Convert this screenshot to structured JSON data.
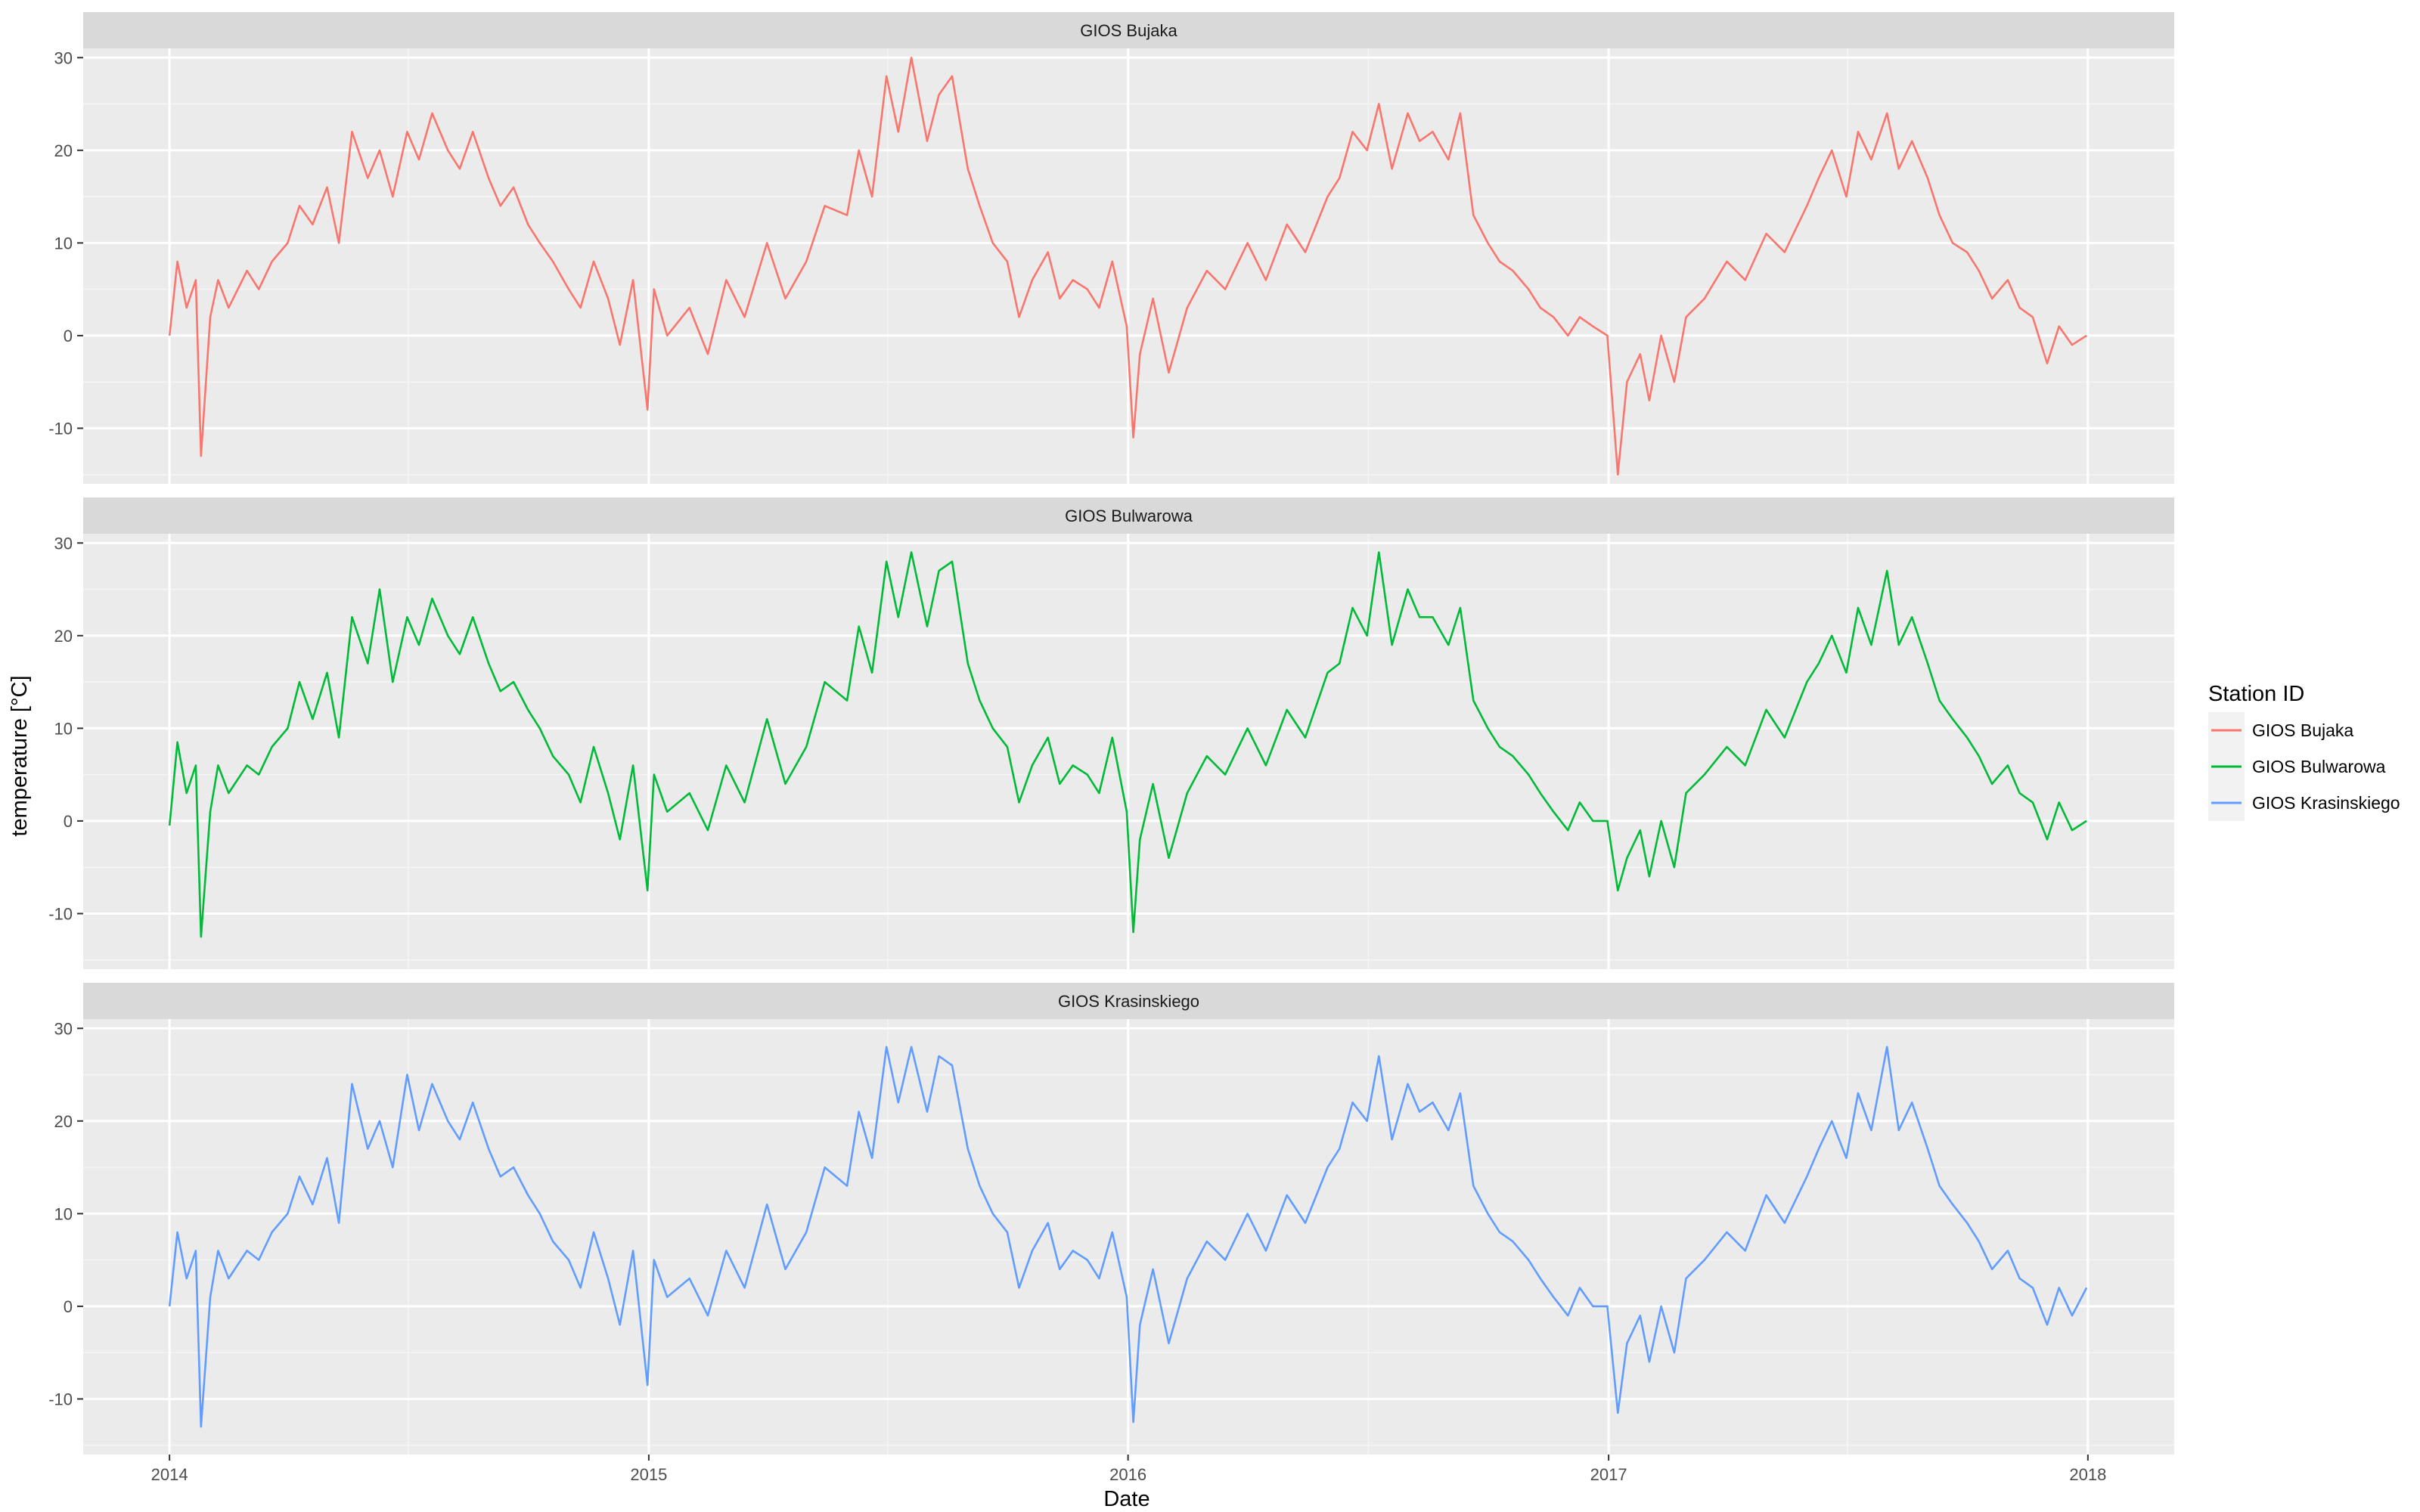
{
  "chart_data": {
    "type": "line",
    "facet_layout": "vertical",
    "xlabel": "Date",
    "ylabel": "temperature [°C]",
    "x_range": [
      "2014-01-01",
      "2018-01-01"
    ],
    "ylim": [
      -16,
      31
    ],
    "grid": true,
    "x_ticks": [
      "2014",
      "2015",
      "2016",
      "2017",
      "2018"
    ],
    "y_ticks": [
      -10,
      0,
      10,
      20,
      30
    ],
    "legend": {
      "title": "Station ID",
      "position": "right",
      "entries": [
        "GIOS Bujaka",
        "GIOS Bulwarowa",
        "GIOS Krasinskiego"
      ]
    },
    "series": [
      {
        "name": "GIOS Bujaka",
        "color": "#F8766D",
        "x": [
          "2014-01-01",
          "2014-01-07",
          "2014-01-14",
          "2014-01-21",
          "2014-01-25",
          "2014-02-01",
          "2014-02-07",
          "2014-02-15",
          "2014-03-01",
          "2014-03-10",
          "2014-03-20",
          "2014-04-01",
          "2014-04-10",
          "2014-04-20",
          "2014-05-01",
          "2014-05-10",
          "2014-05-20",
          "2014-06-01",
          "2014-06-10",
          "2014-06-20",
          "2014-07-01",
          "2014-07-10",
          "2014-07-20",
          "2014-08-01",
          "2014-08-10",
          "2014-08-20",
          "2014-09-01",
          "2014-09-10",
          "2014-09-20",
          "2014-10-01",
          "2014-10-10",
          "2014-10-20",
          "2014-11-01",
          "2014-11-10",
          "2014-11-20",
          "2014-12-01",
          "2014-12-10",
          "2014-12-20",
          "2014-12-31",
          "2015-01-05",
          "2015-01-15",
          "2015-02-01",
          "2015-02-15",
          "2015-03-01",
          "2015-03-15",
          "2015-04-01",
          "2015-04-15",
          "2015-05-01",
          "2015-05-15",
          "2015-06-01",
          "2015-06-10",
          "2015-06-20",
          "2015-07-01",
          "2015-07-10",
          "2015-07-20",
          "2015-08-01",
          "2015-08-10",
          "2015-08-20",
          "2015-09-01",
          "2015-09-10",
          "2015-09-20",
          "2015-10-01",
          "2015-10-10",
          "2015-10-20",
          "2015-11-01",
          "2015-11-10",
          "2015-11-20",
          "2015-12-01",
          "2015-12-10",
          "2015-12-20",
          "2015-12-31",
          "2016-01-05",
          "2016-01-10",
          "2016-01-20",
          "2016-02-01",
          "2016-02-15",
          "2016-03-01",
          "2016-03-15",
          "2016-04-01",
          "2016-04-15",
          "2016-05-01",
          "2016-05-15",
          "2016-06-01",
          "2016-06-10",
          "2016-06-20",
          "2016-07-01",
          "2016-07-10",
          "2016-07-20",
          "2016-08-01",
          "2016-08-10",
          "2016-08-20",
          "2016-09-01",
          "2016-09-10",
          "2016-09-20",
          "2016-10-01",
          "2016-10-10",
          "2016-10-20",
          "2016-11-01",
          "2016-11-10",
          "2016-11-20",
          "2016-12-01",
          "2016-12-10",
          "2016-12-20",
          "2016-12-31",
          "2017-01-08",
          "2017-01-15",
          "2017-01-25",
          "2017-02-01",
          "2017-02-10",
          "2017-02-20",
          "2017-03-01",
          "2017-03-15",
          "2017-04-01",
          "2017-04-15",
          "2017-05-01",
          "2017-05-15",
          "2017-06-01",
          "2017-06-10",
          "2017-06-20",
          "2017-07-01",
          "2017-07-10",
          "2017-07-20",
          "2017-08-01",
          "2017-08-10",
          "2017-08-20",
          "2017-09-01",
          "2017-09-10",
          "2017-09-20",
          "2017-10-01",
          "2017-10-10",
          "2017-10-20",
          "2017-11-01",
          "2017-11-10",
          "2017-11-20",
          "2017-12-01",
          "2017-12-10",
          "2017-12-20",
          "2017-12-31"
        ],
        "values": [
          0,
          8,
          3,
          6,
          -13,
          2,
          6,
          3,
          7,
          5,
          8,
          10,
          14,
          12,
          16,
          10,
          22,
          17,
          20,
          15,
          22,
          19,
          24,
          20,
          18,
          22,
          17,
          14,
          16,
          12,
          10,
          8,
          5,
          3,
          8,
          4,
          -1,
          6,
          -8,
          5,
          0,
          3,
          -2,
          6,
          2,
          10,
          4,
          8,
          14,
          13,
          20,
          15,
          28,
          22,
          30,
          21,
          26,
          28,
          18,
          14,
          10,
          8,
          2,
          6,
          9,
          4,
          6,
          5,
          3,
          8,
          1,
          -11,
          -2,
          4,
          -4,
          3,
          7,
          5,
          10,
          6,
          12,
          9,
          15,
          17,
          22,
          20,
          25,
          18,
          24,
          21,
          22,
          19,
          24,
          13,
          10,
          8,
          7,
          5,
          3,
          2,
          0,
          2,
          1,
          0,
          -15,
          -5,
          -2,
          -7,
          0,
          -5,
          2,
          4,
          8,
          6,
          11,
          9,
          14,
          17,
          20,
          15,
          22,
          19,
          24,
          18,
          21,
          17,
          13,
          10,
          9,
          7,
          4,
          6,
          3,
          2,
          -3,
          1,
          -1,
          0
        ]
      },
      {
        "name": "GIOS Bulwarowa",
        "color": "#00BA38",
        "x": [
          "2014-01-01",
          "2014-01-07",
          "2014-01-14",
          "2014-01-21",
          "2014-01-25",
          "2014-02-01",
          "2014-02-07",
          "2014-02-15",
          "2014-03-01",
          "2014-03-10",
          "2014-03-20",
          "2014-04-01",
          "2014-04-10",
          "2014-04-20",
          "2014-05-01",
          "2014-05-10",
          "2014-05-20",
          "2014-06-01",
          "2014-06-10",
          "2014-06-20",
          "2014-07-01",
          "2014-07-10",
          "2014-07-20",
          "2014-08-01",
          "2014-08-10",
          "2014-08-20",
          "2014-09-01",
          "2014-09-10",
          "2014-09-20",
          "2014-10-01",
          "2014-10-10",
          "2014-10-20",
          "2014-11-01",
          "2014-11-10",
          "2014-11-20",
          "2014-12-01",
          "2014-12-10",
          "2014-12-20",
          "2014-12-31",
          "2015-01-05",
          "2015-01-15",
          "2015-02-01",
          "2015-02-15",
          "2015-03-01",
          "2015-03-15",
          "2015-04-01",
          "2015-04-15",
          "2015-05-01",
          "2015-05-15",
          "2015-06-01",
          "2015-06-10",
          "2015-06-20",
          "2015-07-01",
          "2015-07-10",
          "2015-07-20",
          "2015-08-01",
          "2015-08-10",
          "2015-08-20",
          "2015-09-01",
          "2015-09-10",
          "2015-09-20",
          "2015-10-01",
          "2015-10-10",
          "2015-10-20",
          "2015-11-01",
          "2015-11-10",
          "2015-11-20",
          "2015-12-01",
          "2015-12-10",
          "2015-12-20",
          "2015-12-31",
          "2016-01-05",
          "2016-01-10",
          "2016-01-20",
          "2016-02-01",
          "2016-02-15",
          "2016-03-01",
          "2016-03-15",
          "2016-04-01",
          "2016-04-15",
          "2016-05-01",
          "2016-05-15",
          "2016-06-01",
          "2016-06-10",
          "2016-06-20",
          "2016-07-01",
          "2016-07-10",
          "2016-07-20",
          "2016-08-01",
          "2016-08-10",
          "2016-08-20",
          "2016-09-01",
          "2016-09-10",
          "2016-09-20",
          "2016-10-01",
          "2016-10-10",
          "2016-10-20",
          "2016-11-01",
          "2016-11-10",
          "2016-11-20",
          "2016-12-01",
          "2016-12-10",
          "2016-12-20",
          "2016-12-31",
          "2017-01-08",
          "2017-01-15",
          "2017-01-25",
          "2017-02-01",
          "2017-02-10",
          "2017-02-20",
          "2017-03-01",
          "2017-03-15",
          "2017-04-01",
          "2017-04-15",
          "2017-05-01",
          "2017-05-15",
          "2017-06-01",
          "2017-06-10",
          "2017-06-20",
          "2017-07-01",
          "2017-07-10",
          "2017-07-20",
          "2017-08-01",
          "2017-08-10",
          "2017-08-20",
          "2017-09-01",
          "2017-09-10",
          "2017-09-20",
          "2017-10-01",
          "2017-10-10",
          "2017-10-20",
          "2017-11-01",
          "2017-11-10",
          "2017-11-20",
          "2017-12-01",
          "2017-12-10",
          "2017-12-20",
          "2017-12-31"
        ],
        "values": [
          -0.5,
          8.5,
          3,
          6,
          -12.5,
          1,
          6,
          3,
          6,
          5,
          8,
          10,
          15,
          11,
          16,
          9,
          22,
          17,
          25,
          15,
          22,
          19,
          24,
          20,
          18,
          22,
          17,
          14,
          15,
          12,
          10,
          7,
          5,
          2,
          8,
          3,
          -2,
          6,
          -7.5,
          5,
          1,
          3,
          -1,
          6,
          2,
          11,
          4,
          8,
          15,
          13,
          21,
          16,
          28,
          22,
          29,
          21,
          27,
          28,
          17,
          13,
          10,
          8,
          2,
          6,
          9,
          4,
          6,
          5,
          3,
          9,
          1,
          -12,
          -2,
          4,
          -4,
          3,
          7,
          5,
          10,
          6,
          12,
          9,
          16,
          17,
          23,
          20,
          29,
          19,
          25,
          22,
          22,
          19,
          23,
          13,
          10,
          8,
          7,
          5,
          3,
          1,
          -1,
          2,
          0,
          0,
          -7.5,
          -4,
          -1,
          -6,
          0,
          -5,
          3,
          5,
          8,
          6,
          12,
          9,
          15,
          17,
          20,
          16,
          23,
          19,
          27,
          19,
          22,
          17,
          13,
          11,
          9,
          7,
          4,
          6,
          3,
          2,
          -2,
          2,
          -1,
          0
        ]
      },
      {
        "name": "GIOS Krasinskiego",
        "color": "#619CFF",
        "x": [
          "2014-01-01",
          "2014-01-07",
          "2014-01-14",
          "2014-01-21",
          "2014-01-25",
          "2014-02-01",
          "2014-02-07",
          "2014-02-15",
          "2014-03-01",
          "2014-03-10",
          "2014-03-20",
          "2014-04-01",
          "2014-04-10",
          "2014-04-20",
          "2014-05-01",
          "2014-05-10",
          "2014-05-20",
          "2014-06-01",
          "2014-06-10",
          "2014-06-20",
          "2014-07-01",
          "2014-07-10",
          "2014-07-20",
          "2014-08-01",
          "2014-08-10",
          "2014-08-20",
          "2014-09-01",
          "2014-09-10",
          "2014-09-20",
          "2014-10-01",
          "2014-10-10",
          "2014-10-20",
          "2014-11-01",
          "2014-11-10",
          "2014-11-20",
          "2014-12-01",
          "2014-12-10",
          "2014-12-20",
          "2014-12-31",
          "2015-01-05",
          "2015-01-15",
          "2015-02-01",
          "2015-02-15",
          "2015-03-01",
          "2015-03-15",
          "2015-04-01",
          "2015-04-15",
          "2015-05-01",
          "2015-05-15",
          "2015-06-01",
          "2015-06-10",
          "2015-06-20",
          "2015-07-01",
          "2015-07-10",
          "2015-07-20",
          "2015-08-01",
          "2015-08-10",
          "2015-08-20",
          "2015-09-01",
          "2015-09-10",
          "2015-09-20",
          "2015-10-01",
          "2015-10-10",
          "2015-10-20",
          "2015-11-01",
          "2015-11-10",
          "2015-11-20",
          "2015-12-01",
          "2015-12-10",
          "2015-12-20",
          "2015-12-31",
          "2016-01-05",
          "2016-01-10",
          "2016-01-20",
          "2016-02-01",
          "2016-02-15",
          "2016-03-01",
          "2016-03-15",
          "2016-04-01",
          "2016-04-15",
          "2016-05-01",
          "2016-05-15",
          "2016-06-01",
          "2016-06-10",
          "2016-06-20",
          "2016-07-01",
          "2016-07-10",
          "2016-07-20",
          "2016-08-01",
          "2016-08-10",
          "2016-08-20",
          "2016-09-01",
          "2016-09-10",
          "2016-09-20",
          "2016-10-01",
          "2016-10-10",
          "2016-10-20",
          "2016-11-01",
          "2016-11-10",
          "2016-11-20",
          "2016-12-01",
          "2016-12-10",
          "2016-12-20",
          "2016-12-31",
          "2017-01-08",
          "2017-01-15",
          "2017-01-25",
          "2017-02-01",
          "2017-02-10",
          "2017-02-20",
          "2017-03-01",
          "2017-03-15",
          "2017-04-01",
          "2017-04-15",
          "2017-05-01",
          "2017-05-15",
          "2017-06-01",
          "2017-06-10",
          "2017-06-20",
          "2017-07-01",
          "2017-07-10",
          "2017-07-20",
          "2017-08-01",
          "2017-08-10",
          "2017-08-20",
          "2017-09-01",
          "2017-09-10",
          "2017-09-20",
          "2017-10-01",
          "2017-10-10",
          "2017-10-20",
          "2017-11-01",
          "2017-11-10",
          "2017-11-20",
          "2017-12-01",
          "2017-12-10",
          "2017-12-20",
          "2017-12-31"
        ],
        "values": [
          0,
          8,
          3,
          6,
          -13,
          1,
          6,
          3,
          6,
          5,
          8,
          10,
          14,
          11,
          16,
          9,
          24,
          17,
          20,
          15,
          25,
          19,
          24,
          20,
          18,
          22,
          17,
          14,
          15,
          12,
          10,
          7,
          5,
          2,
          8,
          3,
          -2,
          6,
          -8.5,
          5,
          1,
          3,
          -1,
          6,
          2,
          11,
          4,
          8,
          15,
          13,
          21,
          16,
          28,
          22,
          28,
          21,
          27,
          26,
          17,
          13,
          10,
          8,
          2,
          6,
          9,
          4,
          6,
          5,
          3,
          8,
          1,
          -12.5,
          -2,
          4,
          -4,
          3,
          7,
          5,
          10,
          6,
          12,
          9,
          15,
          17,
          22,
          20,
          27,
          18,
          24,
          21,
          22,
          19,
          23,
          13,
          10,
          8,
          7,
          5,
          3,
          1,
          -1,
          2,
          0,
          0,
          -11.5,
          -4,
          -1,
          -6,
          0,
          -5,
          3,
          5,
          8,
          6,
          12,
          9,
          14,
          17,
          20,
          16,
          23,
          19,
          28,
          19,
          22,
          17,
          13,
          11,
          9,
          7,
          4,
          6,
          3,
          2,
          -2,
          2,
          -1,
          2
        ]
      }
    ]
  }
}
